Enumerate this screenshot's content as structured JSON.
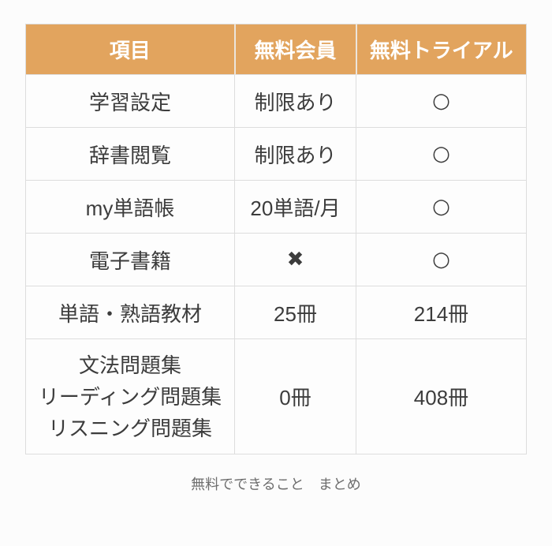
{
  "chart_data": {
    "type": "table",
    "title": "無料でできること　まとめ",
    "columns": [
      "項目",
      "無料会員",
      "無料トライアル"
    ],
    "rows": [
      [
        "学習設定",
        "制限あり",
        "○"
      ],
      [
        "辞書閲覧",
        "制限あり",
        "○"
      ],
      [
        "my単語帳",
        "20単語/月",
        "○"
      ],
      [
        "電子書籍",
        "✖",
        "○"
      ],
      [
        "単語・熟語教材",
        "25冊",
        "214冊"
      ],
      [
        "文法問題集\nリーディング問題集\nリスニング問題集",
        "0冊",
        "408冊"
      ]
    ]
  },
  "colors": {
    "header_bg": "#e2a45e",
    "header_text": "#ffffff",
    "body_text": "#3c3c3c",
    "border": "#dddddd",
    "header_divider": "#ece5dc",
    "caption_text": "#6e6e6e",
    "page_bg": "#fcfcfc"
  }
}
